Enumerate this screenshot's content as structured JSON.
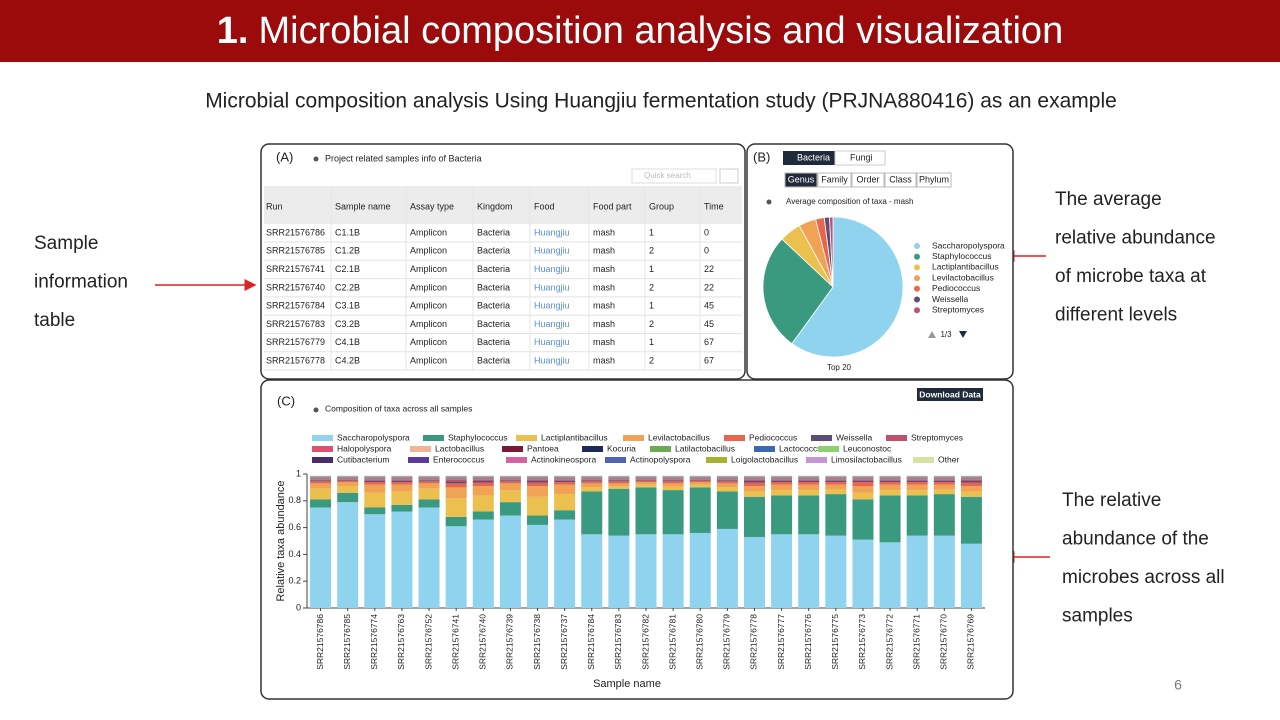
{
  "header": {
    "number": "1.",
    "title": "Microbial composition analysis and visualization"
  },
  "subtitle": "Microbial composition analysis Using Huangjiu fermentation study (PRJNA880416) as an example",
  "annotations": [
    [
      "Sample",
      "information",
      "table"
    ],
    [
      "The average",
      "relative abundance",
      "of microbe taxa at",
      "different levels"
    ],
    [
      "The relative",
      "abundance of the",
      "microbes across all",
      "samples"
    ]
  ],
  "page_number": "6",
  "table_panel": {
    "tag": "(A)",
    "title": "Project related samples info of Bacteria",
    "search": "Quick search",
    "columns": [
      "Run",
      "Sample name",
      "Assay type",
      "Kingdom",
      "Food",
      "Food part",
      "Group",
      "Time"
    ],
    "rows": [
      [
        "SRR21576786",
        "C1.1B",
        "Amplicon",
        "Bacteria",
        "Huangjiu",
        "mash",
        "1",
        "0"
      ],
      [
        "SRR21576785",
        "C1.2B",
        "Amplicon",
        "Bacteria",
        "Huangjiu",
        "mash",
        "2",
        "0"
      ],
      [
        "SRR21576741",
        "C2.1B",
        "Amplicon",
        "Bacteria",
        "Huangjiu",
        "mash",
        "1",
        "22"
      ],
      [
        "SRR21576740",
        "C2.2B",
        "Amplicon",
        "Bacteria",
        "Huangjiu",
        "mash",
        "2",
        "22"
      ],
      [
        "SRR21576784",
        "C3.1B",
        "Amplicon",
        "Bacteria",
        "Huangjiu",
        "mash",
        "1",
        "45"
      ],
      [
        "SRR21576783",
        "C3.2B",
        "Amplicon",
        "Bacteria",
        "Huangjiu",
        "mash",
        "2",
        "45"
      ],
      [
        "SRR21576779",
        "C4.1B",
        "Amplicon",
        "Bacteria",
        "Huangjiu",
        "mash",
        "1",
        "67"
      ],
      [
        "SRR21576778",
        "C4.2B",
        "Amplicon",
        "Bacteria",
        "Huangjiu",
        "mash",
        "2",
        "67"
      ]
    ]
  },
  "pie_panel": {
    "tag": "(B)",
    "tabs": [
      "Bacteria",
      "Fungi"
    ],
    "levels": [
      "Genus",
      "Family",
      "Order",
      "Class",
      "Phylum"
    ],
    "pager": "1/3",
    "footer": "Top 20"
  },
  "bar_panel": {
    "tag": "(C)",
    "button": "Download Data"
  },
  "chart_data": [
    {
      "type": "pie",
      "title": "Average composition of taxa - mash",
      "categories": [
        "Saccharopolyspora",
        "Staphylococcus",
        "Lactiplantibacillus",
        "Levilactobacillus",
        "Pediococcus",
        "Weissella",
        "Streptomyces"
      ],
      "values": [
        60,
        27,
        5,
        4,
        2,
        1.2,
        0.8
      ],
      "colors": [
        "#8fd3ee",
        "#3a9a80",
        "#ecc04e",
        "#f0a255",
        "#e8674c",
        "#5e4d78",
        "#c0506c"
      ]
    },
    {
      "type": "stacked-bar",
      "title": "Composition of taxa across all samples",
      "x_label": "Sample name",
      "y_label": "Relative taxa abundance",
      "categories": [
        "SRR21576786",
        "SRR21576785",
        "SRR21576774",
        "SRR21576763",
        "SRR21576752",
        "SRR21576741",
        "SRR21576740",
        "SRR21576739",
        "SRR21576738",
        "SRR21576737",
        "SRR21576784",
        "SRR21576783",
        "SRR21576782",
        "SRR21576781",
        "SRR21576780",
        "SRR21576779",
        "SRR21576778",
        "SRR21576777",
        "SRR21576776",
        "SRR21576775",
        "SRR21576773",
        "SRR21576772",
        "SRR21576771",
        "SRR21576770",
        "SRR21576769"
      ],
      "ylim": [
        0,
        1
      ],
      "yticks": [
        0,
        0.2,
        0.4,
        0.6,
        0.8,
        1
      ],
      "grid": false,
      "series": [
        {
          "name": "Saccharopolyspora",
          "color": "#8fd3ee",
          "values": [
            0.75,
            0.79,
            0.7,
            0.72,
            0.75,
            0.61,
            0.66,
            0.69,
            0.62,
            0.66,
            0.55,
            0.54,
            0.55,
            0.55,
            0.56,
            0.59,
            0.53,
            0.55,
            0.55,
            0.54,
            0.51,
            0.49,
            0.54,
            0.54,
            0.48
          ]
        },
        {
          "name": "Staphylococcus",
          "color": "#3a9a80",
          "values": [
            0.06,
            0.07,
            0.05,
            0.05,
            0.06,
            0.07,
            0.06,
            0.1,
            0.07,
            0.07,
            0.32,
            0.35,
            0.35,
            0.33,
            0.34,
            0.28,
            0.3,
            0.29,
            0.29,
            0.31,
            0.3,
            0.35,
            0.3,
            0.31,
            0.35
          ]
        },
        {
          "name": "Lactiplantibacillus",
          "color": "#ecc04e",
          "values": [
            0.08,
            0.05,
            0.11,
            0.1,
            0.08,
            0.14,
            0.12,
            0.09,
            0.14,
            0.12,
            0.03,
            0.02,
            0.02,
            0.025,
            0.02,
            0.03,
            0.04,
            0.04,
            0.04,
            0.035,
            0.05,
            0.04,
            0.04,
            0.035,
            0.04
          ]
        },
        {
          "name": "Levilactobacillus",
          "color": "#f0a255",
          "values": [
            0.04,
            0.03,
            0.06,
            0.05,
            0.04,
            0.08,
            0.07,
            0.05,
            0.08,
            0.07,
            0.03,
            0.02,
            0.02,
            0.025,
            0.02,
            0.03,
            0.04,
            0.04,
            0.04,
            0.035,
            0.05,
            0.04,
            0.04,
            0.035,
            0.04
          ]
        },
        {
          "name": "Pediococcus",
          "color": "#e8674c",
          "values": [
            0.015,
            0.01,
            0.02,
            0.02,
            0.015,
            0.03,
            0.025,
            0.015,
            0.025,
            0.02,
            0.015,
            0.015,
            0.01,
            0.015,
            0.01,
            0.015,
            0.025,
            0.02,
            0.02,
            0.02,
            0.03,
            0.02,
            0.02,
            0.02,
            0.025
          ]
        },
        {
          "name": "Weissella",
          "color": "#5e4d78",
          "values": [
            0.008,
            0.005,
            0.01,
            0.01,
            0.008,
            0.015,
            0.013,
            0.008,
            0.013,
            0.01,
            0.008,
            0.008,
            0.005,
            0.008,
            0.005,
            0.008,
            0.013,
            0.01,
            0.01,
            0.01,
            0.01,
            0.01,
            0.01,
            0.01,
            0.013
          ]
        },
        {
          "name": "Streptomyces",
          "color": "#c0506c",
          "values": [
            0.007,
            0.005,
            0.01,
            0.01,
            0.007,
            0.015,
            0.012,
            0.007,
            0.012,
            0.01,
            0.007,
            0.007,
            0.005,
            0.007,
            0.005,
            0.007,
            0.012,
            0.01,
            0.01,
            0.01,
            0.01,
            0.01,
            0.01,
            0.01,
            0.012
          ]
        },
        {
          "name": "Halopolyspora",
          "color": "#e0506e",
          "values": [
            0.002,
            0.002,
            0.002,
            0.002,
            0.002,
            0.002,
            0.002,
            0.002,
            0.002,
            0.002,
            0.002,
            0.002,
            0.002,
            0.002,
            0.002,
            0.002,
            0.002,
            0.002,
            0.002,
            0.002,
            0.002,
            0.002,
            0.002,
            0.002,
            0.002
          ]
        },
        {
          "name": "Lactobacillus",
          "color": "#f2b496",
          "values": [
            0.002,
            0.002,
            0.002,
            0.002,
            0.002,
            0.002,
            0.002,
            0.002,
            0.002,
            0.002,
            0.002,
            0.002,
            0.002,
            0.002,
            0.002,
            0.002,
            0.002,
            0.002,
            0.002,
            0.002,
            0.002,
            0.002,
            0.002,
            0.002,
            0.002
          ]
        },
        {
          "name": "Pantoea",
          "color": "#7a1a3a",
          "values": [
            0.002,
            0.002,
            0.002,
            0.002,
            0.002,
            0.002,
            0.002,
            0.002,
            0.002,
            0.002,
            0.002,
            0.002,
            0.002,
            0.002,
            0.002,
            0.002,
            0.002,
            0.002,
            0.002,
            0.002,
            0.002,
            0.002,
            0.002,
            0.002,
            0.002
          ]
        },
        {
          "name": "Kocuria",
          "color": "#1c2a58",
          "values": [
            0.002,
            0.002,
            0.002,
            0.002,
            0.002,
            0.002,
            0.002,
            0.002,
            0.002,
            0.002,
            0.002,
            0.002,
            0.002,
            0.002,
            0.002,
            0.002,
            0.002,
            0.002,
            0.002,
            0.002,
            0.002,
            0.002,
            0.002,
            0.002,
            0.002
          ]
        },
        {
          "name": "Latilactobacillus",
          "color": "#6aaa52",
          "values": [
            0.002,
            0.002,
            0.002,
            0.002,
            0.002,
            0.002,
            0.002,
            0.002,
            0.002,
            0.002,
            0.002,
            0.002,
            0.002,
            0.002,
            0.002,
            0.002,
            0.002,
            0.002,
            0.002,
            0.002,
            0.002,
            0.002,
            0.002,
            0.002,
            0.002
          ]
        },
        {
          "name": "Lactococcus",
          "color": "#3a6ab0",
          "values": [
            0.002,
            0.002,
            0.002,
            0.002,
            0.002,
            0.002,
            0.002,
            0.002,
            0.002,
            0.002,
            0.002,
            0.002,
            0.002,
            0.002,
            0.002,
            0.002,
            0.002,
            0.002,
            0.002,
            0.002,
            0.002,
            0.002,
            0.002,
            0.002,
            0.002
          ]
        },
        {
          "name": "Leuconostoc",
          "color": "#8cd072",
          "values": [
            0.002,
            0.002,
            0.002,
            0.002,
            0.002,
            0.002,
            0.002,
            0.002,
            0.002,
            0.002,
            0.002,
            0.002,
            0.002,
            0.002,
            0.002,
            0.002,
            0.002,
            0.002,
            0.002,
            0.002,
            0.002,
            0.002,
            0.002,
            0.002,
            0.002
          ]
        },
        {
          "name": "Cutibacterium",
          "color": "#4a2a6a",
          "values": [
            0.002,
            0.002,
            0.002,
            0.002,
            0.002,
            0.002,
            0.002,
            0.002,
            0.002,
            0.002,
            0.002,
            0.002,
            0.002,
            0.002,
            0.002,
            0.002,
            0.002,
            0.002,
            0.002,
            0.002,
            0.002,
            0.002,
            0.002,
            0.002,
            0.002
          ]
        },
        {
          "name": "Enterococcus",
          "color": "#5a3a9a",
          "values": [
            0.002,
            0.002,
            0.002,
            0.002,
            0.002,
            0.002,
            0.002,
            0.002,
            0.002,
            0.002,
            0.002,
            0.002,
            0.002,
            0.002,
            0.002,
            0.002,
            0.002,
            0.002,
            0.002,
            0.002,
            0.002,
            0.002,
            0.002,
            0.002,
            0.002
          ]
        },
        {
          "name": "Actinokineospora",
          "color": "#d462a4",
          "values": [
            0.002,
            0.002,
            0.002,
            0.002,
            0.002,
            0.002,
            0.002,
            0.002,
            0.002,
            0.002,
            0.002,
            0.002,
            0.002,
            0.002,
            0.002,
            0.002,
            0.002,
            0.002,
            0.002,
            0.002,
            0.002,
            0.002,
            0.002,
            0.002,
            0.002
          ]
        },
        {
          "name": "Actinopolyspora",
          "color": "#5262b2",
          "values": [
            0.002,
            0.002,
            0.002,
            0.002,
            0.002,
            0.002,
            0.002,
            0.002,
            0.002,
            0.002,
            0.002,
            0.002,
            0.002,
            0.002,
            0.002,
            0.002,
            0.002,
            0.002,
            0.002,
            0.002,
            0.002,
            0.002,
            0.002,
            0.002,
            0.002
          ]
        },
        {
          "name": "Loigolactobacillus",
          "color": "#a4b232",
          "values": [
            0.002,
            0.002,
            0.002,
            0.002,
            0.002,
            0.002,
            0.002,
            0.002,
            0.002,
            0.002,
            0.002,
            0.002,
            0.002,
            0.002,
            0.002,
            0.002,
            0.002,
            0.002,
            0.002,
            0.002,
            0.002,
            0.002,
            0.002,
            0.002,
            0.002
          ]
        },
        {
          "name": "Limosilactobacillus",
          "color": "#c496d4",
          "values": [
            0.002,
            0.002,
            0.002,
            0.002,
            0.002,
            0.002,
            0.002,
            0.002,
            0.002,
            0.002,
            0.002,
            0.002,
            0.002,
            0.002,
            0.002,
            0.002,
            0.002,
            0.002,
            0.002,
            0.002,
            0.002,
            0.002,
            0.002,
            0.002,
            0.002
          ]
        },
        {
          "name": "Other",
          "color": "#d4e2a2",
          "values": [
            0.002,
            0.002,
            0.002,
            0.002,
            0.002,
            0.002,
            0.002,
            0.002,
            0.002,
            0.002,
            0.002,
            0.002,
            0.002,
            0.002,
            0.002,
            0.002,
            0.002,
            0.002,
            0.002,
            0.002,
            0.002,
            0.002,
            0.002,
            0.002,
            0.002
          ]
        }
      ]
    }
  ]
}
